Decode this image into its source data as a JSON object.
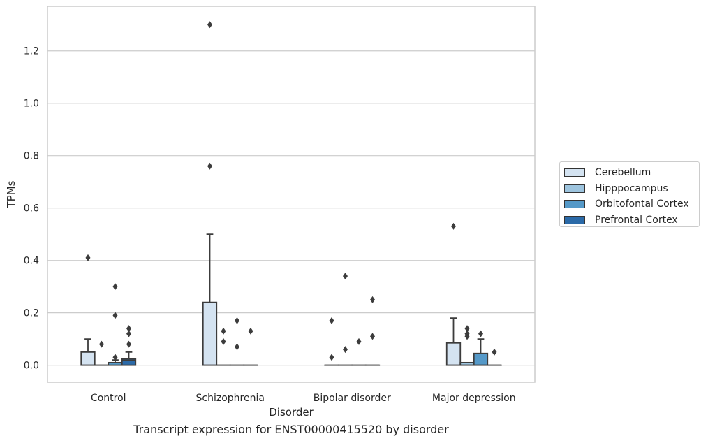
{
  "caption": "Transcript expression for ENST00000415520 by disorder",
  "chart_data": {
    "type": "boxplot",
    "xlabel": "Disorder",
    "ylabel": "TPMs",
    "ylim": [
      -0.065,
      1.37
    ],
    "yticks": [
      "0.0",
      "0.2",
      "0.4",
      "0.6",
      "0.8",
      "1.0",
      "1.2"
    ],
    "categories": [
      "Control",
      "Schizophrenia",
      "Bipolar disorder",
      "Major depression"
    ],
    "legend_position": "right",
    "grid": true,
    "series": [
      {
        "name": "Cerebellum",
        "color": "#d4e3f1",
        "boxes": [
          {
            "q1": 0,
            "median": 0,
            "q3": 0.05,
            "whisker_low": 0,
            "whisker_high": 0.1,
            "outliers": [
              0.41
            ]
          },
          {
            "q1": 0,
            "median": 0,
            "q3": 0.24,
            "whisker_low": 0,
            "whisker_high": 0.5,
            "outliers": [
              0.76,
              1.3
            ]
          },
          {
            "q1": 0,
            "median": 0,
            "q3": 0,
            "whisker_low": 0,
            "whisker_high": 0,
            "outliers": [
              0.17,
              0.03
            ]
          },
          {
            "q1": 0,
            "median": 0,
            "q3": 0.085,
            "whisker_low": 0,
            "whisker_high": 0.18,
            "outliers": [
              0.53
            ]
          }
        ]
      },
      {
        "name": "Hipppocampus",
        "color": "#9dc4de",
        "boxes": [
          {
            "q1": 0,
            "median": 0,
            "q3": 0,
            "whisker_low": 0,
            "whisker_high": 0,
            "outliers": [
              0.08
            ]
          },
          {
            "q1": 0,
            "median": 0,
            "q3": 0,
            "whisker_low": 0,
            "whisker_high": 0,
            "outliers": [
              0.13,
              0.09
            ]
          },
          {
            "q1": 0,
            "median": 0,
            "q3": 0,
            "whisker_low": 0,
            "whisker_high": 0,
            "outliers": [
              0.34,
              0.06
            ]
          },
          {
            "q1": 0,
            "median": 0,
            "q3": 0.01,
            "whisker_low": 0,
            "whisker_high": 0.01,
            "outliers": [
              0.14,
              0.12,
              0.11
            ]
          }
        ]
      },
      {
        "name": "Orbitofontal Cortex",
        "color": "#5599c8",
        "boxes": [
          {
            "q1": 0,
            "median": 0.01,
            "q3": 0.01,
            "whisker_low": 0,
            "whisker_high": 0.02,
            "outliers": [
              0.3,
              0.19,
              0.03
            ]
          },
          {
            "q1": 0,
            "median": 0,
            "q3": 0,
            "whisker_low": 0,
            "whisker_high": 0,
            "outliers": [
              0.17,
              0.07
            ]
          },
          {
            "q1": 0,
            "median": 0,
            "q3": 0,
            "whisker_low": 0,
            "whisker_high": 0,
            "outliers": [
              0.09
            ]
          },
          {
            "q1": 0,
            "median": 0,
            "q3": 0.045,
            "whisker_low": 0,
            "whisker_high": 0.1,
            "outliers": [
              0.12
            ]
          }
        ]
      },
      {
        "name": "Prefrontal Cortex",
        "color": "#2b6aa8",
        "boxes": [
          {
            "q1": 0,
            "median": 0.02,
            "q3": 0.025,
            "whisker_low": 0,
            "whisker_high": 0.05,
            "outliers": [
              0.14,
              0.12,
              0.08
            ]
          },
          {
            "q1": 0,
            "median": 0,
            "q3": 0,
            "whisker_low": 0,
            "whisker_high": 0,
            "outliers": [
              0.13
            ]
          },
          {
            "q1": 0,
            "median": 0,
            "q3": 0,
            "whisker_low": 0,
            "whisker_high": 0,
            "outliers": [
              0.25,
              0.11
            ]
          },
          {
            "q1": 0,
            "median": 0,
            "q3": 0,
            "whisker_low": 0,
            "whisker_high": 0,
            "outliers": [
              0.05
            ]
          }
        ]
      }
    ]
  }
}
